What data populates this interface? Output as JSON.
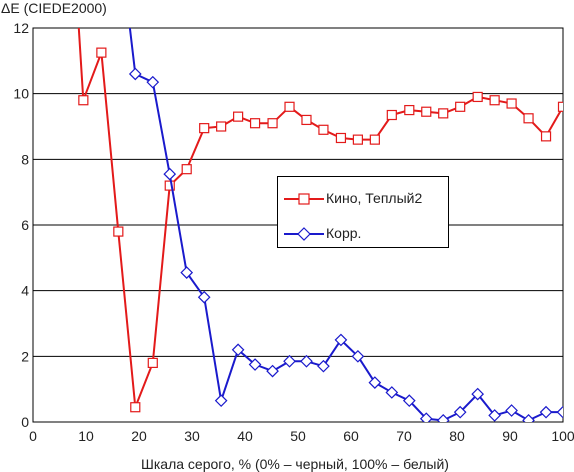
{
  "chart_data": {
    "type": "line",
    "title": "",
    "ylabel": "ΔE (CIEDE2000)",
    "xlabel": "Шкала серого, % (0% – черный, 100% – белый)",
    "xlim": [
      0,
      100
    ],
    "ylim": [
      0,
      12
    ],
    "xticks": [
      0,
      10,
      20,
      30,
      40,
      50,
      60,
      70,
      80,
      90,
      100
    ],
    "yticks": [
      0,
      2,
      4,
      6,
      8,
      10,
      12
    ],
    "grid": "horizontal",
    "legend_position": "center-right",
    "series": [
      {
        "name": "Кино, Теплый2",
        "color": "#e31a1a",
        "marker": "square",
        "x": [
          6.5,
          9.5,
          12.9,
          16.1,
          19.3,
          22.6,
          25.8,
          29.0,
          32.3,
          35.5,
          38.7,
          41.9,
          45.2,
          48.4,
          51.6,
          54.8,
          58.1,
          61.3,
          64.5,
          67.7,
          71.0,
          74.2,
          77.4,
          80.6,
          83.9,
          87.1,
          90.3,
          93.5,
          96.8,
          100
        ],
        "y": [
          17.5,
          9.8,
          11.25,
          5.8,
          0.45,
          1.8,
          7.2,
          7.7,
          8.95,
          9.0,
          9.3,
          9.1,
          9.1,
          9.6,
          9.2,
          8.9,
          8.65,
          8.6,
          8.6,
          9.35,
          9.5,
          9.45,
          9.4,
          9.6,
          9.9,
          9.8,
          9.7,
          9.25,
          8.7,
          9.6
        ]
      },
      {
        "name": "Корр.",
        "color": "#1a1acc",
        "marker": "diamond",
        "x": [
          16.1,
          19.3,
          22.6,
          25.8,
          29.0,
          32.3,
          35.5,
          38.7,
          41.9,
          45.2,
          48.4,
          51.6,
          54.8,
          58.1,
          61.3,
          64.5,
          67.7,
          71.0,
          74.2,
          77.4,
          80.6,
          83.9,
          87.1,
          90.3,
          93.5,
          96.8,
          100
        ],
        "y": [
          15.0,
          10.6,
          10.35,
          7.55,
          4.55,
          3.8,
          0.65,
          2.2,
          1.75,
          1.55,
          1.85,
          1.85,
          1.7,
          2.5,
          2.0,
          1.2,
          0.9,
          0.65,
          0.1,
          0.05,
          0.3,
          0.85,
          0.2,
          0.35,
          0.05,
          0.3,
          0.3
        ]
      }
    ]
  }
}
